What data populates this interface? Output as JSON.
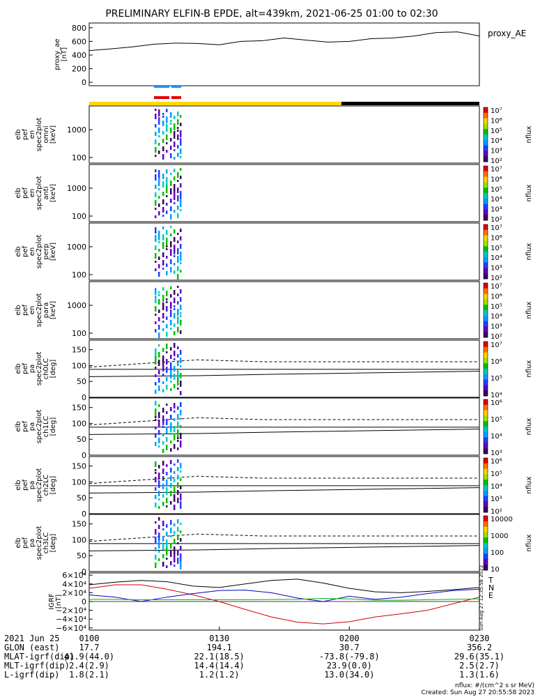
{
  "title": "PRELIMINARY ELFIN-B EPDE, alt=439km, 2021-06-25 01:00 to 02:30",
  "colors": {
    "energy_line": "#000000",
    "bar_yellow": "#ffd700",
    "bar_black": "#000000",
    "marker_blue": "#1e90ff",
    "marker_red": "#e00000",
    "igrf_red": "#d00000",
    "igrf_blue": "#0000c8",
    "igrf_green": "#00b000",
    "igrf_black": "#000000"
  },
  "chart_data": [
    {
      "id": "proxy_ae",
      "type": "line",
      "ylabel": [
        "proxy_ae",
        "[nT]"
      ],
      "series_label": "proxy_AE",
      "yticks": [
        "800",
        "600",
        "400",
        "200",
        "0"
      ],
      "ylim": [
        -50,
        870
      ],
      "x": [
        0,
        5,
        10,
        15,
        20,
        25,
        30,
        35,
        40,
        45,
        50,
        55,
        60,
        65,
        70,
        75,
        80,
        85,
        90
      ],
      "values": [
        465,
        490,
        520,
        560,
        575,
        570,
        550,
        600,
        610,
        650,
        620,
        590,
        600,
        640,
        650,
        680,
        730,
        740,
        680
      ]
    },
    {
      "id": "spec_omni",
      "type": "heatmap",
      "ylabel": [
        "elb",
        "pef",
        "en",
        "spec2plot",
        "omni",
        "[keV]"
      ],
      "yticks": [
        "1000",
        "100"
      ],
      "cbar_ticks": [
        "10⁷",
        "10⁶",
        "10⁵",
        "10⁴",
        "10³",
        "10²"
      ],
      "cbar_label": "nflux"
    },
    {
      "id": "spec_anti",
      "type": "heatmap",
      "ylabel": [
        "elb",
        "pef",
        "en",
        "spec2plot",
        "anti",
        "[keV]"
      ],
      "yticks": [
        "1000",
        "100"
      ],
      "cbar_ticks": [
        "10⁷",
        "10⁶",
        "10⁵",
        "10⁴",
        "10³",
        "10²"
      ],
      "cbar_label": "nflux"
    },
    {
      "id": "spec_perp",
      "type": "heatmap",
      "ylabel": [
        "elb",
        "pef",
        "en",
        "spec2plot",
        "perp",
        "[keV]"
      ],
      "yticks": [
        "1000",
        "100"
      ],
      "cbar_ticks": [
        "10⁷",
        "10⁶",
        "10⁵",
        "10⁴",
        "10³",
        "10²"
      ],
      "cbar_label": "nflux"
    },
    {
      "id": "spec_para",
      "type": "heatmap",
      "ylabel": [
        "elb",
        "pef",
        "en",
        "spec2plot",
        "para",
        "[keV]"
      ],
      "yticks": [
        "1000",
        "100"
      ],
      "cbar_ticks": [
        "10⁷",
        "10⁶",
        "10⁵",
        "10⁴",
        "10³",
        "10²"
      ],
      "cbar_label": "nflux"
    },
    {
      "id": "pa_ch0",
      "type": "heatmap",
      "ylabel": [
        "elb",
        "pef",
        "pa",
        "spec2plot",
        "ch0LC",
        "[deg]"
      ],
      "yticks": [
        "150",
        "100",
        "50",
        "0"
      ],
      "ylim": [
        0,
        180
      ],
      "cbar_ticks": [
        "10⁷",
        "10⁶",
        "10⁵",
        "10⁴"
      ],
      "cbar_label": "nflux"
    },
    {
      "id": "pa_ch1",
      "type": "heatmap",
      "ylabel": [
        "elb",
        "pef",
        "pa",
        "spec2plot",
        "ch1LC",
        "[deg]"
      ],
      "yticks": [
        "150",
        "100",
        "50",
        "0"
      ],
      "ylim": [
        0,
        180
      ],
      "cbar_ticks": [
        "10⁶",
        "10⁵",
        "10⁴",
        "10³"
      ],
      "cbar_label": "nflux"
    },
    {
      "id": "pa_ch2",
      "type": "heatmap",
      "ylabel": [
        "elb",
        "pef",
        "pa",
        "spec2plot",
        "ch2LC",
        "[deg]"
      ],
      "yticks": [
        "150",
        "100",
        "50",
        "0"
      ],
      "ylim": [
        0,
        180
      ],
      "cbar_ticks": [
        "10⁶",
        "10⁵",
        "10⁴",
        "10³",
        "10²"
      ],
      "cbar_label": "nflux"
    },
    {
      "id": "pa_ch3",
      "type": "heatmap",
      "ylabel": [
        "elb",
        "pef",
        "pa",
        "spec2plot",
        "ch3LC",
        "[deg]"
      ],
      "yticks": [
        "150",
        "100",
        "50",
        "0"
      ],
      "ylim": [
        0,
        180
      ],
      "cbar_ticks": [
        "10000",
        "1000",
        "100",
        "10"
      ],
      "cbar_label": "nflux"
    },
    {
      "id": "igrf",
      "type": "line",
      "ylabel": [
        "IGRF",
        "[nT]"
      ],
      "yticks": [
        "6×10⁴",
        "4×10⁴",
        "2×10⁴",
        "0",
        "−2×10⁴",
        "−4×10⁴",
        "−6×10⁴"
      ],
      "ylim": [
        -65000,
        65000
      ],
      "legend": [
        "T",
        "N",
        "E"
      ],
      "x": [
        0,
        6,
        12,
        18,
        24,
        30,
        36,
        42,
        48,
        54,
        60,
        66,
        72,
        78,
        84,
        90
      ],
      "series": [
        {
          "name": "T",
          "values": [
            38000,
            44000,
            48000,
            45000,
            35000,
            32000,
            40000,
            48000,
            51000,
            42000,
            30000,
            22000,
            20000,
            23000,
            27000,
            32000
          ]
        },
        {
          "name": "N",
          "values": [
            30000,
            38000,
            38000,
            28000,
            15000,
            0,
            -18000,
            -35000,
            -47000,
            -51000,
            -46000,
            -35000,
            -28000,
            -20000,
            -5000,
            10000
          ]
        },
        {
          "name": "E",
          "values": [
            15000,
            10000,
            0,
            10000,
            18000,
            25000,
            26000,
            20000,
            8000,
            0,
            12000,
            5000,
            10000,
            18000,
            25000,
            28000
          ]
        },
        {
          "name": "green",
          "values": [
            5000,
            5000,
            4000,
            4000,
            4000,
            4000,
            4000,
            4500,
            5000,
            7000,
            6000,
            3000,
            3000,
            4000,
            5000,
            6000
          ]
        }
      ]
    }
  ],
  "pa_reference": {
    "dashed": [
      95,
      118,
      112,
      112,
      112
    ],
    "solid_upper": [
      88,
      88,
      88,
      88,
      88
    ],
    "solid_lower": [
      65,
      68,
      72,
      76,
      82
    ]
  },
  "ephemeris": {
    "labels": [
      "2021 Jun 25",
      "GLON (east)",
      "MLAT-igrf(dip)",
      "MLT-igrf(dip)",
      "L-igrf(dip)"
    ],
    "columns": [
      {
        "time": "0100",
        "values": [
          "17.7",
          "41.9(44.0)",
          "2.4(2.9)",
          "1.8(2.1)"
        ]
      },
      {
        "time": "0130",
        "values": [
          "194.1",
          "22.1(18.5)",
          "14.4(14.4)",
          "1.2(1.2)"
        ]
      },
      {
        "time": "0200",
        "values": [
          "30.7",
          "-73.8(-79.8)",
          "23.9(0.0)",
          "13.0(34.0)"
        ]
      },
      {
        "time": "0230",
        "values": [
          "356.2",
          "29.6(35.1)",
          "2.5(2.7)",
          "1.3(1.6)"
        ]
      }
    ]
  },
  "footer": {
    "units": "nflux: #/(cm^2 s sr MeV)",
    "created": "Created: Sun Aug 27 20:55:58 2023",
    "side_stamp": "Sun Aug 27 12:35:58 2023"
  }
}
